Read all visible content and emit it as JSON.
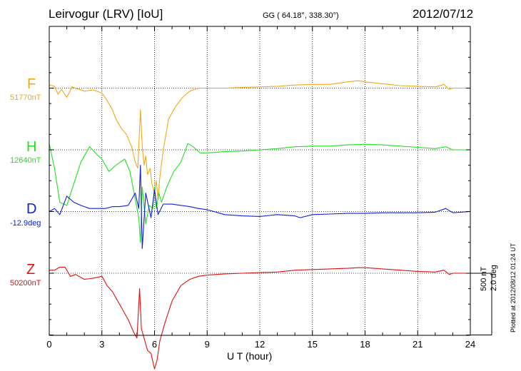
{
  "header": {
    "title": "Leirvogur (LRV)  [IoU]",
    "coords": "GG ( 64.18°, 338.30°)",
    "date": "2012/07/12"
  },
  "side_notes": {
    "scale_nt": "500 nT",
    "scale_deg": "2.0 deg",
    "plotted": "Plotted at 2012/08/12 01:24 UT"
  },
  "chart_data": {
    "type": "line",
    "title": "Leirvogur (LRV)  [IoU]",
    "xlabel": "U T (hour)",
    "xlim": [
      0,
      24
    ],
    "xticks": [
      0,
      3,
      6,
      9,
      12,
      15,
      18,
      21,
      24
    ],
    "grid": true,
    "scale": "500 nT / 2.0 deg per vertical grid unit",
    "series": [
      {
        "name": "F",
        "baseline_label": "51770nT",
        "color": "#f0a818",
        "baseline_grid": 1,
        "x": [
          0,
          0.3,
          0.5,
          0.7,
          1,
          1.3,
          1.7,
          2,
          2.5,
          3,
          3.3,
          3.6,
          3.8,
          4.1,
          4.4,
          4.7,
          4.9,
          5.05,
          5.2,
          5.3,
          5.4,
          5.5,
          5.6,
          5.75,
          5.85,
          6,
          6.1,
          6.2,
          6.3,
          6.5,
          6.8,
          7.2,
          7.6,
          8,
          8.5,
          9,
          10,
          11,
          12,
          13,
          14,
          15,
          16,
          17,
          17.6,
          18,
          19,
          20,
          21,
          22,
          22.5,
          22.8,
          23,
          24
        ],
        "y": [
          0.05,
          0.03,
          -0.1,
          -0.02,
          -0.15,
          0.02,
          -0.02,
          -0.05,
          -0.03,
          -0.08,
          -0.2,
          -0.35,
          -0.5,
          -0.65,
          -0.75,
          -0.95,
          -1.2,
          -1.3,
          -0.35,
          -0.95,
          -1.25,
          -1.1,
          -1.4,
          -1.3,
          -1.55,
          -1.7,
          -1.5,
          -1.8,
          -1.45,
          -1.0,
          -0.5,
          -0.3,
          -0.15,
          -0.05,
          0.0,
          0.0,
          0.0,
          0.01,
          0.02,
          0.03,
          0.05,
          0.06,
          0.06,
          0.1,
          0.12,
          0.1,
          0.07,
          0.04,
          0.03,
          0.02,
          0.06,
          -0.02,
          0.0,
          0.0
        ]
      },
      {
        "name": "H",
        "baseline_label": "12640nT",
        "color": "#20e020",
        "baseline_grid": 2,
        "x": [
          0,
          0.3,
          0.6,
          1,
          1.4,
          1.8,
          2.3,
          2.8,
          3,
          3.4,
          3.8,
          4.3,
          4.6,
          4.9,
          5.1,
          5.2,
          5.3,
          5.5,
          5.7,
          5.9,
          6,
          6.1,
          6.25,
          6.4,
          6.7,
          7.1,
          7.5,
          7.9,
          8.2,
          8.6,
          9,
          10,
          11,
          12,
          13,
          14,
          15,
          16,
          17,
          18,
          19,
          20,
          21,
          22,
          22.6,
          23,
          24
        ],
        "y": [
          0.1,
          -0.3,
          -0.85,
          -0.9,
          -0.55,
          -0.2,
          0.05,
          -0.1,
          -0.15,
          -0.35,
          -0.25,
          -0.15,
          -0.35,
          -0.8,
          -1.1,
          -1.5,
          -0.6,
          -1.2,
          -0.9,
          -0.95,
          -0.6,
          -0.95,
          -0.7,
          -0.85,
          -0.6,
          -0.35,
          -0.2,
          0.1,
          0.05,
          -0.05,
          -0.05,
          -0.03,
          -0.02,
          0.0,
          0.02,
          0.05,
          0.06,
          0.06,
          0.08,
          0.09,
          0.08,
          0.06,
          0.04,
          0.02,
          0.05,
          0.0,
          0.0
        ]
      },
      {
        "name": "D",
        "baseline_label": "-12.9deg",
        "color": "#1020d8",
        "baseline_grid": 3,
        "x": [
          0,
          0.3,
          0.6,
          1,
          1.4,
          1.8,
          2.3,
          2.8,
          3.2,
          3.6,
          4,
          4.5,
          4.9,
          5.1,
          5.2,
          5.3,
          5.5,
          5.8,
          6,
          6.2,
          6.5,
          7,
          7.5,
          8,
          8.5,
          9,
          10,
          11,
          12,
          13,
          14,
          14.3,
          15,
          16,
          17,
          18,
          19,
          20,
          21,
          22,
          22.6,
          23,
          24
        ],
        "y": [
          0.0,
          0.05,
          -0.05,
          0.25,
          0.15,
          0.1,
          0.05,
          0.05,
          0.05,
          0.08,
          0.08,
          0.1,
          0.3,
          0.05,
          0.75,
          -0.6,
          0.3,
          -0.1,
          0.35,
          -0.05,
          0.12,
          0.12,
          0.1,
          0.08,
          0.05,
          0.03,
          -0.05,
          -0.07,
          -0.08,
          -0.05,
          -0.07,
          -0.1,
          -0.05,
          -0.04,
          -0.03,
          -0.03,
          -0.02,
          -0.02,
          -0.02,
          -0.01,
          0.05,
          -0.02,
          0.0
        ]
      },
      {
        "name": "Z",
        "baseline_label": "50200nT",
        "color": "#e01010",
        "baseline_grid": 4,
        "x": [
          0,
          0.3,
          0.6,
          0.9,
          1.2,
          1.5,
          2,
          2.5,
          3,
          3.3,
          3.6,
          3.9,
          4.2,
          4.5,
          4.8,
          5,
          5.15,
          5.25,
          5.4,
          5.6,
          5.8,
          6,
          6.15,
          6.3,
          6.6,
          7,
          7.5,
          8,
          8.5,
          9,
          10,
          11,
          12,
          13,
          14,
          15,
          16,
          17,
          17.6,
          18,
          19,
          20,
          21,
          22,
          22.5,
          22.8,
          23,
          24
        ],
        "y": [
          0.05,
          0.05,
          0.1,
          0.1,
          -0.05,
          -0.02,
          -0.1,
          -0.08,
          -0.05,
          -0.2,
          -0.3,
          -0.45,
          -0.6,
          -0.75,
          -0.95,
          -1.05,
          -0.25,
          -0.9,
          -1.05,
          -1.25,
          -1.3,
          -1.55,
          -1.4,
          -1.1,
          -0.8,
          -0.45,
          -0.2,
          -0.1,
          -0.05,
          -0.03,
          -0.01,
          0.0,
          0.01,
          0.02,
          0.05,
          0.06,
          0.07,
          0.08,
          0.09,
          0.09,
          0.07,
          0.05,
          0.03,
          0.02,
          0.05,
          -0.02,
          0.0,
          0.0
        ]
      }
    ]
  }
}
